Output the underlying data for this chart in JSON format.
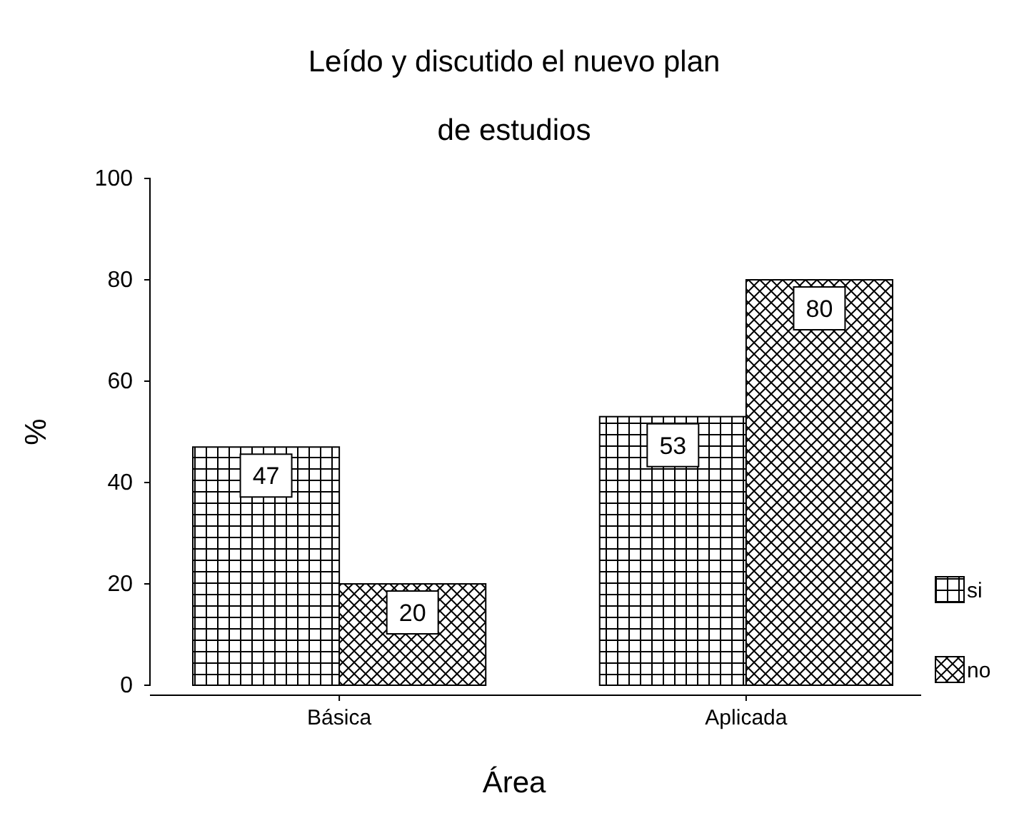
{
  "chart_data": {
    "type": "bar",
    "title": "Leído y discutido el nuevo plan de estudios",
    "xlabel": "Área",
    "ylabel": "%",
    "categories": [
      "Básica",
      "Aplicada"
    ],
    "series": [
      {
        "name": "si",
        "color": "#000000",
        "values": [
          47,
          53
        ]
      },
      {
        "name": "no",
        "color": "#000000",
        "values": [
          20,
          80
        ]
      }
    ],
    "ylim": [
      0,
      100
    ],
    "yticks": [
      0,
      20,
      40,
      60,
      80,
      100
    ],
    "data_labels": true,
    "legend": "right"
  }
}
